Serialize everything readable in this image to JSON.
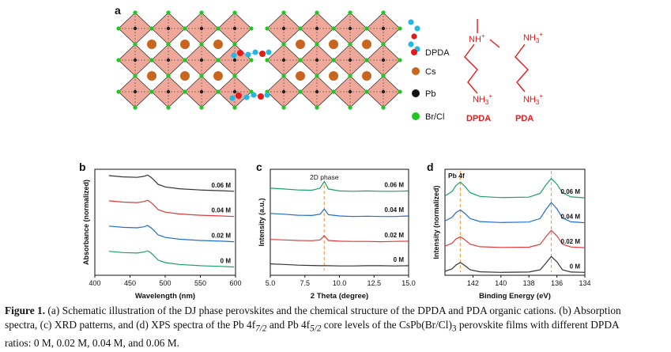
{
  "panel_a": {
    "letter": "a",
    "legend": [
      {
        "label": "DPDA",
        "color": "#e51a1a"
      },
      {
        "label": "Cs",
        "color": "#c8651e"
      },
      {
        "label": "Pb",
        "color": "#111111"
      },
      {
        "label": "Br/Cl",
        "color": "#22c622"
      }
    ],
    "chem": {
      "dpda_top": "NH",
      "dpda_top_sup": "+",
      "nh3": "NH",
      "nh3_sub": "3",
      "nh3_sup": "+",
      "dpda_name": "DPDA",
      "pda_name": "PDA"
    },
    "colors": {
      "octahedron": "#f0a89a",
      "edge": "#333333",
      "chem": "#e51a1a",
      "ligand_c": "#22b8e6"
    }
  },
  "chart_data": [
    {
      "panel": "b",
      "type": "line",
      "xlabel": "Wavelength (nm)",
      "ylabel": "Absorbance (normalized)",
      "xlim": [
        400,
        600
      ],
      "xticks": [
        400,
        450,
        500,
        550,
        600
      ],
      "series": [
        {
          "name": "0.06 M",
          "color": "#333333",
          "x": [
            420,
            440,
            460,
            470,
            475,
            480,
            485,
            490,
            500,
            520,
            550,
            580,
            598
          ],
          "y": [
            3.95,
            3.9,
            3.88,
            3.92,
            3.97,
            3.88,
            3.75,
            3.6,
            3.5,
            3.43,
            3.38,
            3.35,
            3.33
          ]
        },
        {
          "name": "0.04 M",
          "color": "#e03a3a",
          "x": [
            420,
            440,
            460,
            470,
            475,
            480,
            485,
            490,
            500,
            520,
            550,
            580,
            598
          ],
          "y": [
            2.95,
            2.9,
            2.88,
            2.92,
            2.97,
            2.88,
            2.75,
            2.6,
            2.5,
            2.43,
            2.38,
            2.35,
            2.33
          ]
        },
        {
          "name": "0.02 M",
          "color": "#1f6fd1",
          "x": [
            420,
            440,
            460,
            470,
            475,
            480,
            485,
            490,
            500,
            520,
            550,
            580,
            598
          ],
          "y": [
            1.95,
            1.9,
            1.88,
            1.92,
            1.97,
            1.88,
            1.75,
            1.6,
            1.5,
            1.43,
            1.38,
            1.35,
            1.33
          ]
        },
        {
          "name": "0 M",
          "color": "#1aa06a",
          "x": [
            420,
            440,
            460,
            470,
            475,
            480,
            485,
            490,
            500,
            520,
            550,
            580,
            598
          ],
          "y": [
            0.95,
            0.9,
            0.88,
            0.92,
            0.97,
            0.88,
            0.75,
            0.6,
            0.5,
            0.43,
            0.38,
            0.35,
            0.33
          ]
        }
      ]
    },
    {
      "panel": "c",
      "type": "line",
      "xlabel": "2 Theta (degree)",
      "ylabel": "Intensity (a.u.)",
      "xlim": [
        5,
        15
      ],
      "xticks": [
        "5.0",
        "7.5",
        "10.0",
        "12.5",
        "15.0"
      ],
      "annotation": "2D phase",
      "peak_x": 8.9,
      "series": [
        {
          "name": "0.06 M",
          "color": "#1aa06a",
          "x": [
            5,
            6,
            7,
            8,
            8.6,
            8.9,
            9.2,
            10,
            11,
            12,
            13,
            14,
            15
          ],
          "y": [
            3.45,
            3.42,
            3.38,
            3.37,
            3.45,
            3.72,
            3.42,
            3.34,
            3.33,
            3.34,
            3.33,
            3.33,
            3.34
          ]
        },
        {
          "name": "0.04 M",
          "color": "#1f6fd1",
          "x": [
            5,
            6,
            7,
            8,
            8.6,
            8.9,
            9.2,
            10,
            11,
            12,
            13,
            14,
            15
          ],
          "y": [
            2.45,
            2.42,
            2.38,
            2.37,
            2.42,
            2.62,
            2.4,
            2.35,
            2.33,
            2.34,
            2.33,
            2.33,
            2.35
          ]
        },
        {
          "name": "0.02 M",
          "color": "#e03a3a",
          "x": [
            5,
            6,
            7,
            8,
            8.6,
            8.9,
            9.2,
            10,
            11,
            12,
            13,
            14,
            15
          ],
          "y": [
            1.42,
            1.4,
            1.38,
            1.37,
            1.4,
            1.57,
            1.38,
            1.35,
            1.34,
            1.34,
            1.33,
            1.34,
            1.35
          ]
        },
        {
          "name": "0 M",
          "color": "#333333",
          "x": [
            5,
            6,
            7,
            8,
            8.6,
            8.9,
            9.2,
            10,
            11,
            12,
            13,
            14,
            15
          ],
          "y": [
            0.45,
            0.43,
            0.4,
            0.39,
            0.38,
            0.38,
            0.38,
            0.37,
            0.37,
            0.38,
            0.38,
            0.37,
            0.38
          ]
        }
      ]
    },
    {
      "panel": "d",
      "type": "line",
      "xlabel": "Binding Energy (eV)",
      "ylabel": "Intensity (normalized)",
      "xlim": [
        144,
        134
      ],
      "xticks": [
        142,
        140,
        138,
        136,
        134
      ],
      "annotation": "Pb 4f",
      "peaks": [
        142.9,
        136.4
      ],
      "series": [
        {
          "name": "0.06 M",
          "color": "#1aa06a",
          "x": [
            144,
            143.5,
            143.2,
            142.9,
            142.6,
            142.2,
            141.5,
            140,
            138,
            137.2,
            136.8,
            136.4,
            136.0,
            135.6,
            135,
            134
          ],
          "y": [
            3.12,
            3.3,
            3.55,
            3.68,
            3.52,
            3.25,
            3.1,
            3.05,
            3.07,
            3.22,
            3.55,
            3.82,
            3.6,
            3.25,
            3.08,
            3.04
          ]
        },
        {
          "name": "0.04 M",
          "color": "#1f6fd1",
          "x": [
            144,
            143.5,
            143.2,
            142.9,
            142.6,
            142.2,
            141.5,
            140,
            138,
            137.2,
            136.8,
            136.4,
            136.0,
            135.6,
            135,
            134
          ],
          "y": [
            2.1,
            2.25,
            2.45,
            2.55,
            2.42,
            2.2,
            2.08,
            2.04,
            2.06,
            2.2,
            2.55,
            2.85,
            2.6,
            2.22,
            2.07,
            2.03
          ]
        },
        {
          "name": "0.02 M",
          "color": "#e03a3a",
          "x": [
            144,
            143.5,
            143.2,
            142.9,
            142.6,
            142.2,
            141.5,
            140,
            138,
            137.2,
            136.8,
            136.4,
            136.0,
            135.6,
            135,
            134
          ],
          "y": [
            1.08,
            1.2,
            1.38,
            1.46,
            1.35,
            1.16,
            1.06,
            1.03,
            1.04,
            1.15,
            1.45,
            1.72,
            1.5,
            1.16,
            1.05,
            1.02
          ]
        },
        {
          "name": "0 M",
          "color": "#333333",
          "x": [
            144,
            143.5,
            143.2,
            142.9,
            142.6,
            142.2,
            141.5,
            140,
            138,
            137.2,
            136.8,
            136.4,
            136.0,
            135.6,
            135,
            134
          ],
          "y": [
            0.06,
            0.16,
            0.32,
            0.42,
            0.3,
            0.12,
            0.04,
            0.02,
            0.03,
            0.12,
            0.38,
            0.66,
            0.45,
            0.12,
            0.03,
            0.02
          ]
        }
      ]
    }
  ],
  "caption": {
    "label": "Figure 1.",
    "line1": " (a) Schematic illustration of the DJ phase perovskites and the chemical structure of the DPDA and PDA organic cations. (b) Absorption",
    "line2": "spectra, (c) XRD patterns, and (d) XPS spectra of the Pb 4f",
    "sub72": "7/2",
    "mid": " and Pb 4f",
    "sub52": "5/2",
    "after": " core levels of the CsPb(Br/Cl)",
    "sub3": "3",
    "tail": " perovskite films with different DPDA",
    "line3": "ratios: 0 M, 0.02 M, 0.04 M, and 0.06 M."
  }
}
